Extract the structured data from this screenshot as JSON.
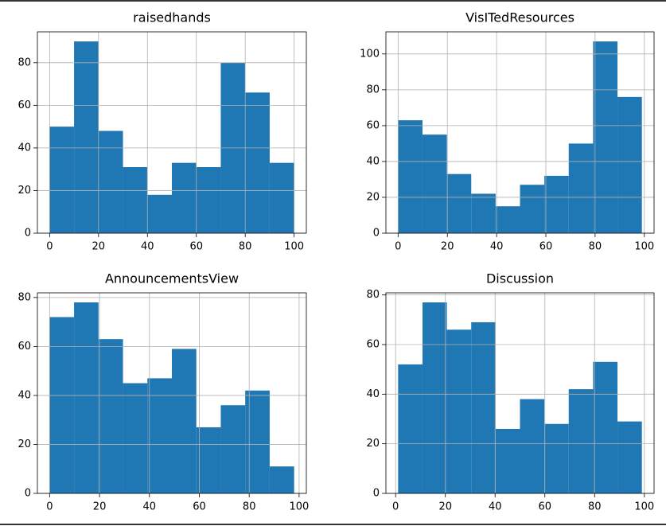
{
  "chart_data": [
    {
      "type": "histogram",
      "title": "raisedhands",
      "color": "#1f77b4",
      "grid": true,
      "bins": [
        0,
        10,
        20,
        30,
        40,
        50,
        60,
        70,
        80,
        90,
        100
      ],
      "values": [
        50,
        90,
        48,
        31,
        18,
        33,
        31,
        80,
        66,
        33
      ],
      "xlim": [
        -5,
        105
      ],
      "xticks": [
        0,
        20,
        40,
        60,
        80,
        100
      ],
      "ylim": [
        0,
        94.5
      ],
      "yticks": [
        0,
        20,
        40,
        60,
        80
      ]
    },
    {
      "type": "histogram",
      "title": "VisITedResources",
      "color": "#1f77b4",
      "grid": true,
      "bins": [
        0,
        9.9,
        19.8,
        29.7,
        39.6,
        49.5,
        59.4,
        69.3,
        79.2,
        89.1,
        99
      ],
      "values": [
        63,
        55,
        33,
        22,
        15,
        27,
        32,
        50,
        107,
        76
      ],
      "xlim": [
        -4.95,
        103.95
      ],
      "xticks": [
        0,
        20,
        40,
        60,
        80,
        100
      ],
      "ylim": [
        0,
        112.35
      ],
      "yticks": [
        0,
        20,
        40,
        60,
        80,
        100
      ]
    },
    {
      "type": "histogram",
      "title": "AnnouncementsView",
      "color": "#1f77b4",
      "grid": true,
      "bins": [
        0,
        9.8,
        19.6,
        29.4,
        39.2,
        49,
        58.8,
        68.6,
        78.4,
        88.2,
        98
      ],
      "values": [
        72,
        78,
        63,
        45,
        47,
        59,
        27,
        36,
        42,
        11
      ],
      "xlim": [
        -4.9,
        102.9
      ],
      "xticks": [
        0,
        20,
        40,
        60,
        80,
        100
      ],
      "ylim": [
        0,
        81.9
      ],
      "yticks": [
        0,
        20,
        40,
        60,
        80
      ]
    },
    {
      "type": "histogram",
      "title": "Discussion",
      "color": "#1f77b4",
      "grid": true,
      "bins": [
        1,
        10.8,
        20.6,
        30.4,
        40.2,
        50,
        59.8,
        69.6,
        79.4,
        89.2,
        99
      ],
      "values": [
        52,
        77,
        66,
        69,
        26,
        38,
        28,
        42,
        53,
        29
      ],
      "xlim": [
        -3.9,
        103.9
      ],
      "xticks": [
        0,
        20,
        40,
        60,
        80,
        100
      ],
      "ylim": [
        0,
        80.85
      ],
      "yticks": [
        0,
        20,
        40,
        60,
        80
      ]
    }
  ]
}
